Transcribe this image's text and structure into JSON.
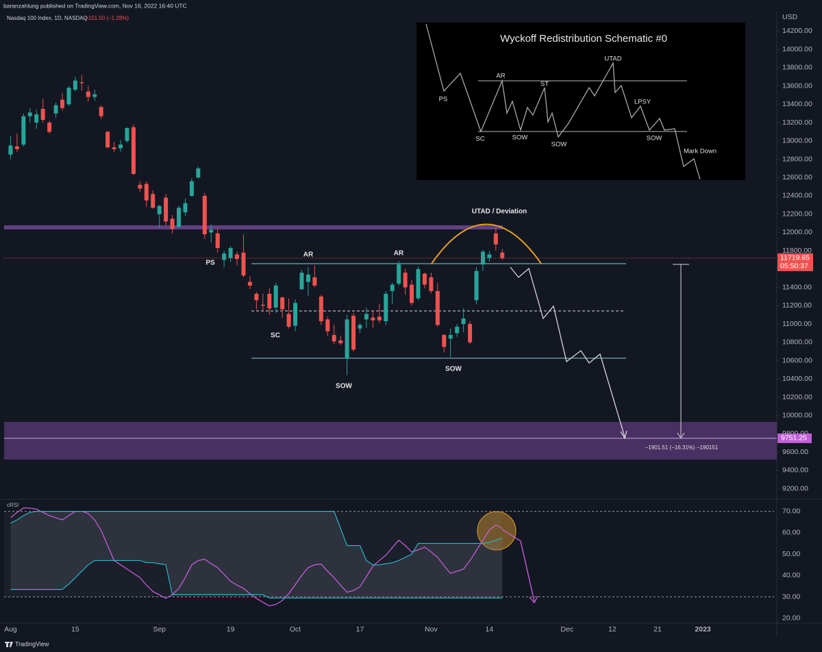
{
  "header": {
    "publisher": "baranzahlung published on TradingView.com, Nov 16, 2022 16:40 UTC",
    "symbol": "Nasdaq 100 Index, 1D, NASDAQ",
    "change": "−151.50 (−1.28%)"
  },
  "chart_data": [
    {
      "type": "candlestick",
      "currency": "USD",
      "open": [
        12850,
        12940,
        12960,
        13270,
        13200,
        13350,
        13200,
        13300,
        13450,
        13400,
        13560,
        13640,
        13540,
        13480,
        13370,
        13100,
        12930,
        12920,
        13000,
        13150,
        12520,
        12530,
        12420,
        12200,
        12380,
        12150,
        12060,
        12220,
        12400,
        12600,
        12400,
        12000,
        11990,
        11700,
        11720,
        11760,
        11780,
        11460,
        11330,
        11210,
        11330,
        11180,
        11290,
        11110,
        10980,
        11380,
        11460,
        11510,
        11300,
        11050,
        10880,
        10820,
        10620,
        11090,
        10950,
        11050,
        11070,
        11080,
        11030,
        11360,
        11440,
        11560,
        11430,
        11280,
        11550,
        11510,
        11360,
        10880,
        10840,
        10900,
        11000,
        11000,
        11260,
        11650,
        11720,
        11990,
        11780
      ],
      "high": [
        13050,
        13080,
        13300,
        13360,
        13340,
        13460,
        13220,
        13420,
        13520,
        13600,
        13700,
        13720,
        13600,
        13560,
        13390,
        13110,
        12990,
        13010,
        13150,
        13180,
        12560,
        12560,
        12460,
        12300,
        12420,
        12190,
        12290,
        12370,
        12590,
        12720,
        12430,
        12090,
        12040,
        11800,
        11850,
        11790,
        11980,
        11520,
        11350,
        11330,
        11390,
        11450,
        11300,
        11280,
        11270,
        11590,
        11620,
        11640,
        11320,
        11080,
        10990,
        10870,
        11100,
        11120,
        11010,
        11180,
        11150,
        11220,
        11360,
        11450,
        11690,
        11600,
        11480,
        11630,
        11560,
        11560,
        11450,
        10890,
        10950,
        11000,
        11170,
        11030,
        11620,
        11810,
        11800,
        12050,
        11820
      ],
      "low": [
        12800,
        12880,
        12940,
        13200,
        13130,
        13200,
        13080,
        13250,
        13330,
        13380,
        13540,
        13550,
        13430,
        13440,
        13240,
        12920,
        12880,
        12880,
        12980,
        12630,
        12440,
        12280,
        12260,
        12050,
        12080,
        11990,
        12050,
        12180,
        12390,
        12590,
        11930,
        11890,
        11780,
        11620,
        11680,
        11640,
        11510,
        11380,
        11160,
        11150,
        11100,
        11120,
        11070,
        10950,
        10920,
        11370,
        11310,
        11400,
        10990,
        10870,
        10780,
        10770,
        10440,
        10700,
        10900,
        10960,
        10960,
        11010,
        10990,
        11220,
        11420,
        11320,
        11200,
        11260,
        11390,
        11330,
        10970,
        10690,
        10640,
        10860,
        10910,
        10780,
        11220,
        11580,
        11680,
        11800,
        11700
      ],
      "close": [
        12950,
        12910,
        13270,
        13310,
        13290,
        13230,
        13100,
        13390,
        13360,
        13580,
        13660,
        13630,
        13480,
        13510,
        13270,
        12930,
        12910,
        12960,
        13140,
        12640,
        12480,
        12350,
        12270,
        12290,
        12120,
        12040,
        12270,
        12320,
        12560,
        12700,
        11980,
        12030,
        11830,
        11770,
        11830,
        11710,
        11530,
        11420,
        11260,
        11200,
        11170,
        11420,
        11160,
        10970,
        11230,
        11560,
        11540,
        11420,
        11030,
        10920,
        10810,
        10790,
        11050,
        10720,
        10990,
        11110,
        11040,
        11040,
        11330,
        11430,
        11650,
        11400,
        11230,
        11600,
        11430,
        11360,
        10990,
        10750,
        10880,
        10970,
        11060,
        10800,
        11580,
        11790,
        11760,
        11870,
        11719.65
      ],
      "colors": {
        "up": "#26a69a",
        "down": "#ef5350"
      },
      "ylim": [
        9100,
        14390
      ],
      "yticks": [
        {
          "value": 9200,
          "label": "9200.00"
        },
        {
          "value": 9400,
          "label": "9400.00"
        },
        {
          "value": 9600,
          "label": "9600.00"
        },
        {
          "value": 9800,
          "label": "9800.00"
        },
        {
          "value": 10000,
          "label": "10000.00"
        },
        {
          "value": 10200,
          "label": "10200.00"
        },
        {
          "value": 10400,
          "label": "10400.00"
        },
        {
          "value": 10600,
          "label": "10600.00"
        },
        {
          "value": 10800,
          "label": "10800.00"
        },
        {
          "value": 11000,
          "label": "11000.00"
        },
        {
          "value": 11200,
          "label": "11200.00"
        },
        {
          "value": 11400,
          "label": "11400.00"
        },
        {
          "value": 11600,
          "label": "11600.00"
        },
        {
          "value": 11800,
          "label": "11800.00"
        },
        {
          "value": 12000,
          "label": "12000.00"
        },
        {
          "value": 12200,
          "label": "12200.00"
        },
        {
          "value": 12400,
          "label": "12400.00"
        },
        {
          "value": 12600,
          "label": "12600.00"
        },
        {
          "value": 12800,
          "label": "12800.00"
        },
        {
          "value": 13000,
          "label": "13000.00"
        },
        {
          "value": 13200,
          "label": "13200.00"
        },
        {
          "value": 13400,
          "label": "13400.00"
        },
        {
          "value": 13600,
          "label": "13600.00"
        },
        {
          "value": 13800,
          "label": "13800.00"
        },
        {
          "value": 14000,
          "label": "14000.00"
        },
        {
          "value": 14200,
          "label": "14200.00"
        }
      ],
      "xlim": [
        -1,
        118
      ],
      "xticks": [
        {
          "value": 0,
          "label": "Aug"
        },
        {
          "value": 10,
          "label": "15"
        },
        {
          "value": 23,
          "label": "Sep"
        },
        {
          "value": 34,
          "label": "19"
        },
        {
          "value": 44,
          "label": "Oct"
        },
        {
          "value": 54,
          "label": "17"
        },
        {
          "value": 65,
          "label": "Nov"
        },
        {
          "value": 74,
          "label": "14"
        },
        {
          "value": 86,
          "label": "Dec"
        },
        {
          "value": 93,
          "label": "12"
        },
        {
          "value": 100,
          "label": "21"
        },
        {
          "value": 107,
          "label": "2023"
        }
      ],
      "countdown": "05:50:37",
      "target": 9751.25,
      "annotations": [
        "PS",
        "AR",
        "AR",
        "SC",
        "SOW",
        "SOW",
        "UTAD / Deviation"
      ],
      "measure": "−1901.51 (−16.31%) −190151"
    },
    {
      "type": "line",
      "title": "cRSI",
      "series": [
        {
          "color": "#d160e6",
          "values": [
            67,
            69.5,
            71.6,
            71.5,
            71,
            69.5,
            68,
            67,
            66,
            68,
            70,
            70,
            69,
            66,
            61,
            54,
            47,
            45,
            43,
            41,
            39,
            35.5,
            32.5,
            31,
            29.3,
            31,
            34,
            39,
            45,
            47,
            47.6,
            45.5,
            43.7,
            40.5,
            37.3,
            35.5,
            34,
            31.5,
            29.3,
            27.5,
            25.8,
            26.5,
            28.3,
            31.5,
            35.7,
            40,
            43.7,
            45,
            45.3,
            42,
            39,
            35.5,
            32.2,
            33,
            34.7,
            39.5,
            44.4,
            47,
            49.5,
            53,
            56.5,
            54,
            51,
            52,
            53.3,
            51,
            48.5,
            44.5,
            41,
            42,
            43,
            47,
            51.7,
            56.5,
            61.3,
            63.6,
            62
          ]
        },
        {
          "color": "#2bb6c8",
          "values": [
            64.5,
            66,
            68,
            69.5,
            70,
            70,
            70,
            70,
            70,
            70,
            70,
            70,
            70,
            70,
            70,
            70,
            70,
            70,
            70,
            70,
            70,
            70,
            70,
            70,
            70,
            70,
            70,
            70,
            70,
            70,
            70,
            70,
            70,
            70,
            70,
            70,
            70,
            70,
            70,
            70,
            70,
            70,
            70,
            70,
            70,
            70,
            70,
            70,
            70,
            70,
            70,
            62,
            54,
            54,
            54,
            47,
            45,
            45,
            45.5,
            46,
            47,
            48.5,
            50,
            55,
            55,
            55,
            55,
            55,
            55,
            55,
            55,
            55,
            55,
            55,
            55.5,
            56.5,
            57.5
          ]
        },
        {
          "color": "#2bb6c8",
          "values": [
            33.5,
            33.5,
            33.5,
            33.5,
            33.5,
            33.5,
            33.5,
            33.5,
            33.5,
            36,
            39,
            42,
            45,
            47,
            47,
            47,
            47,
            47,
            47,
            47,
            47,
            46,
            46,
            45.5,
            45,
            31,
            31,
            31,
            31,
            31,
            31,
            31,
            31,
            31,
            31,
            31,
            31,
            31,
            31,
            31,
            29.5,
            29.5,
            29.5,
            29.5,
            29.5,
            29.5,
            29.5,
            29.5,
            29.5,
            29.5,
            29.5,
            29.5,
            29.5,
            29.5,
            29.5,
            29.5,
            29.5,
            29.5,
            29.5,
            29.5,
            29.5,
            29.5,
            29.5,
            29.5,
            29.5,
            29.5,
            29.5,
            29.5,
            29.5,
            29.5,
            29.5,
            29.5,
            29.5,
            29.5,
            29.5,
            29.5,
            29.5
          ]
        }
      ],
      "ylim": [
        18,
        75
      ],
      "yticks": [
        {
          "value": 20,
          "label": "20.00"
        },
        {
          "value": 30,
          "label": "30.00"
        },
        {
          "value": 40,
          "label": "40.00"
        },
        {
          "value": 50,
          "label": "50.00"
        },
        {
          "value": 60,
          "label": "60.00"
        },
        {
          "value": 70,
          "label": "70.00"
        }
      ],
      "levels": [
        30,
        70
      ]
    }
  ],
  "inset": {
    "title": "Wyckoff Redistribution Schematic #0",
    "labels": [
      "PS",
      "AR",
      "ST",
      "UTAD",
      "LPSY",
      "SC",
      "SOW",
      "SOW",
      "SOW",
      "Mark Down"
    ]
  },
  "footer": {
    "brand": "TradingView"
  }
}
